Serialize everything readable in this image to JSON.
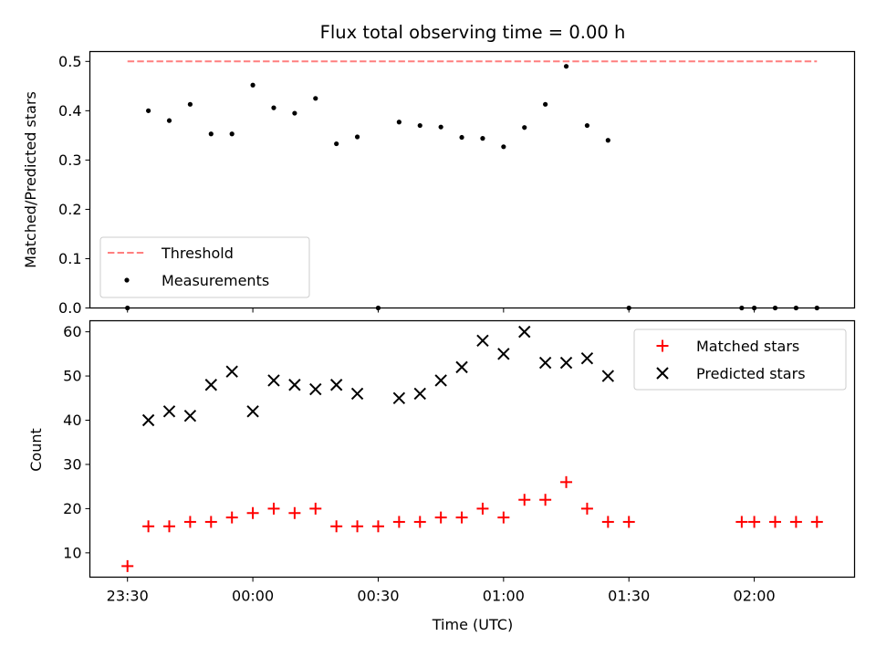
{
  "colors": {
    "threshold": "#ff7f7f",
    "measurement": "#000000",
    "matched": "#ff0000",
    "predicted": "#000000"
  },
  "chart_data": [
    {
      "type": "scatter",
      "title": "Flux total observing time = 0.00 h",
      "xlabel": "",
      "ylabel": "Matched/Predicted stars",
      "ylim": [
        0,
        0.52
      ],
      "yticks": [
        "0.0",
        "0.1",
        "0.2",
        "0.3",
        "0.4",
        "0.5"
      ],
      "xlim": [
        "23:21",
        "02:24"
      ],
      "grid": false,
      "legend": "lower-left",
      "series": [
        {
          "name": "Threshold",
          "kind": "dashed-line",
          "x": [
            "23:30",
            "02:15"
          ],
          "y": [
            0.5,
            0.5
          ]
        },
        {
          "name": "Measurements",
          "kind": "dot",
          "x": [
            "23:30",
            "23:35",
            "23:40",
            "23:45",
            "23:50",
            "23:55",
            "00:00",
            "00:05",
            "00:10",
            "00:15",
            "00:20",
            "00:25",
            "00:30",
            "00:35",
            "00:40",
            "00:45",
            "00:50",
            "00:55",
            "01:00",
            "01:05",
            "01:10",
            "01:15",
            "01:20",
            "01:25",
            "01:30",
            "01:57",
            "02:00",
            "02:05",
            "02:10",
            "02:15"
          ],
          "y": [
            0.0,
            0.4,
            0.38,
            0.413,
            0.353,
            0.353,
            0.452,
            0.406,
            0.395,
            0.425,
            0.333,
            0.347,
            0.0,
            0.377,
            0.37,
            0.367,
            0.346,
            0.344,
            0.327,
            0.366,
            0.413,
            0.49,
            0.37,
            0.34,
            0.0,
            0.0,
            0.0,
            0.0,
            0.0,
            0.0
          ]
        }
      ]
    },
    {
      "type": "scatter",
      "title": "",
      "xlabel": "Time (UTC)",
      "ylabel": "Count",
      "ylim": [
        4.5,
        62.5
      ],
      "yticks": [
        "10",
        "20",
        "30",
        "40",
        "50",
        "60"
      ],
      "xlim": [
        "23:21",
        "02:24"
      ],
      "xticks": [
        "23:30",
        "00:00",
        "00:30",
        "01:00",
        "01:30",
        "02:00"
      ],
      "grid": false,
      "legend": "top-right",
      "series": [
        {
          "name": "Matched stars",
          "marker": "+",
          "x": [
            "23:30",
            "23:35",
            "23:40",
            "23:45",
            "23:50",
            "23:55",
            "00:00",
            "00:05",
            "00:10",
            "00:15",
            "00:20",
            "00:25",
            "00:30",
            "00:35",
            "00:40",
            "00:45",
            "00:50",
            "00:55",
            "01:00",
            "01:05",
            "01:10",
            "01:15",
            "01:20",
            "01:25",
            "01:30",
            "01:57",
            "02:00",
            "02:05",
            "02:10",
            "02:15"
          ],
          "y": [
            7,
            16,
            16,
            17,
            17,
            18,
            19,
            20,
            19,
            20,
            16,
            16,
            16,
            17,
            17,
            18,
            18,
            20,
            18,
            22,
            22,
            26,
            20,
            17,
            17,
            17,
            17,
            17,
            17,
            17
          ]
        },
        {
          "name": "Predicted stars",
          "marker": "x",
          "x": [
            "23:35",
            "23:40",
            "23:45",
            "23:50",
            "23:55",
            "00:00",
            "00:05",
            "00:10",
            "00:15",
            "00:20",
            "00:25",
            "00:35",
            "00:40",
            "00:45",
            "00:50",
            "00:55",
            "01:00",
            "01:05",
            "01:10",
            "01:15",
            "01:20",
            "01:25"
          ],
          "y": [
            40,
            42,
            41,
            48,
            51,
            42,
            49,
            48,
            47,
            48,
            46,
            45,
            46,
            49,
            52,
            58,
            55,
            60,
            53,
            53,
            54,
            50
          ]
        }
      ]
    }
  ]
}
